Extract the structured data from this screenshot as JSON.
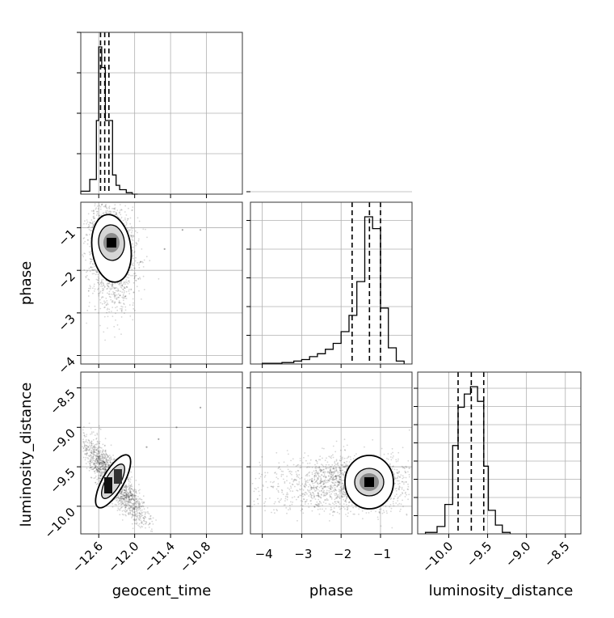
{
  "figure": {
    "type": "corner_plot",
    "parameters": [
      "geocent_time",
      "phase",
      "luminosity_distance"
    ]
  },
  "chart_data": [
    {
      "type": "histogram",
      "param": "geocent_time",
      "xlim": [
        -12.9,
        -10.2
      ],
      "bins": [
        -12.9,
        -12.75,
        -12.64,
        -12.6,
        -12.55,
        -12.49,
        -12.37,
        -12.31,
        -12.25,
        -12.14,
        -12.04,
        -11.95
      ],
      "counts": [
        0.02,
        0.1,
        0.5,
        1.0,
        0.86,
        0.5,
        0.13,
        0.06,
        0.03,
        0.01,
        0.0
      ],
      "quantiles": [
        -12.57,
        -12.5,
        -12.43
      ],
      "yticks": 4,
      "grid": true
    },
    {
      "type": "scatter_contour",
      "x": "geocent_time",
      "y": "phase",
      "xlim": [
        -12.9,
        -10.2
      ],
      "ylim": [
        -4.2,
        -0.4
      ],
      "yticks": [
        -1,
        -2,
        -3,
        -4
      ],
      "ylabel": "phase",
      "mode": {
        "x": -12.5,
        "y": -1.2
      },
      "outliers": [
        {
          "x": -11.2,
          "y": -1.05
        },
        {
          "x": -10.9,
          "y": -1.05
        },
        {
          "x": -11.5,
          "y": -1.5
        },
        {
          "x": -11.9,
          "y": -1.8
        }
      ],
      "grid": true
    },
    {
      "type": "histogram",
      "param": "phase",
      "xlim": [
        -4.3,
        -0.2
      ],
      "bins": [
        -4.0,
        -3.5,
        -3.2,
        -3.0,
        -2.8,
        -2.6,
        -2.4,
        -2.2,
        -2.0,
        -1.8,
        -1.6,
        -1.4,
        -1.2,
        -1.0,
        -0.8,
        -0.6,
        -0.4
      ],
      "counts": [
        0.005,
        0.01,
        0.02,
        0.03,
        0.05,
        0.07,
        0.1,
        0.14,
        0.22,
        0.33,
        0.56,
        1.0,
        0.92,
        0.38,
        0.11,
        0.02
      ],
      "quantiles": [
        -1.72,
        -1.28,
        -1.0
      ],
      "yticks": 6,
      "grid": true
    },
    {
      "type": "scatter_contour",
      "x": "geocent_time",
      "y": "luminosity_distance",
      "xlim": [
        -12.9,
        -10.2
      ],
      "ylim": [
        -10.35,
        -8.3
      ],
      "xticks": [
        -12.6,
        -12.0,
        -11.4,
        -10.8
      ],
      "yticks": [
        -8.5,
        -9.0,
        -9.5,
        -10.0
      ],
      "xlabel": "geocent_time",
      "ylabel": "luminosity_distance",
      "correlation": "positive",
      "outliers": [
        {
          "x": -11.6,
          "y": -9.15
        },
        {
          "x": -11.8,
          "y": -9.25
        },
        {
          "x": -11.3,
          "y": -9.0
        },
        {
          "x": -10.9,
          "y": -8.75
        }
      ],
      "grid": true
    },
    {
      "type": "scatter_contour",
      "x": "phase",
      "y": "luminosity_distance",
      "xlim": [
        -4.3,
        -0.2
      ],
      "ylim": [
        -10.35,
        -8.3
      ],
      "xticks": [
        -4,
        -3,
        -2,
        -1
      ],
      "xlabel": "phase",
      "mode": {
        "x": -1.2,
        "y": -9.7
      },
      "grid": true
    },
    {
      "type": "histogram",
      "param": "luminosity_distance",
      "xlim": [
        -10.4,
        -8.3
      ],
      "bins": [
        -10.3,
        -10.15,
        -10.05,
        -9.95,
        -9.88,
        -9.8,
        -9.72,
        -9.63,
        -9.55,
        -9.49,
        -9.4,
        -9.31,
        -9.21
      ],
      "counts": [
        0.01,
        0.05,
        0.2,
        0.6,
        0.86,
        0.95,
        1.0,
        0.9,
        0.46,
        0.16,
        0.06,
        0.01
      ],
      "quantiles": [
        -9.88,
        -9.71,
        -9.55
      ],
      "xticks": [
        -10.0,
        -9.5,
        -9.0,
        -8.5
      ],
      "yticks": 8,
      "xlabel": "luminosity_distance",
      "grid": true
    }
  ]
}
